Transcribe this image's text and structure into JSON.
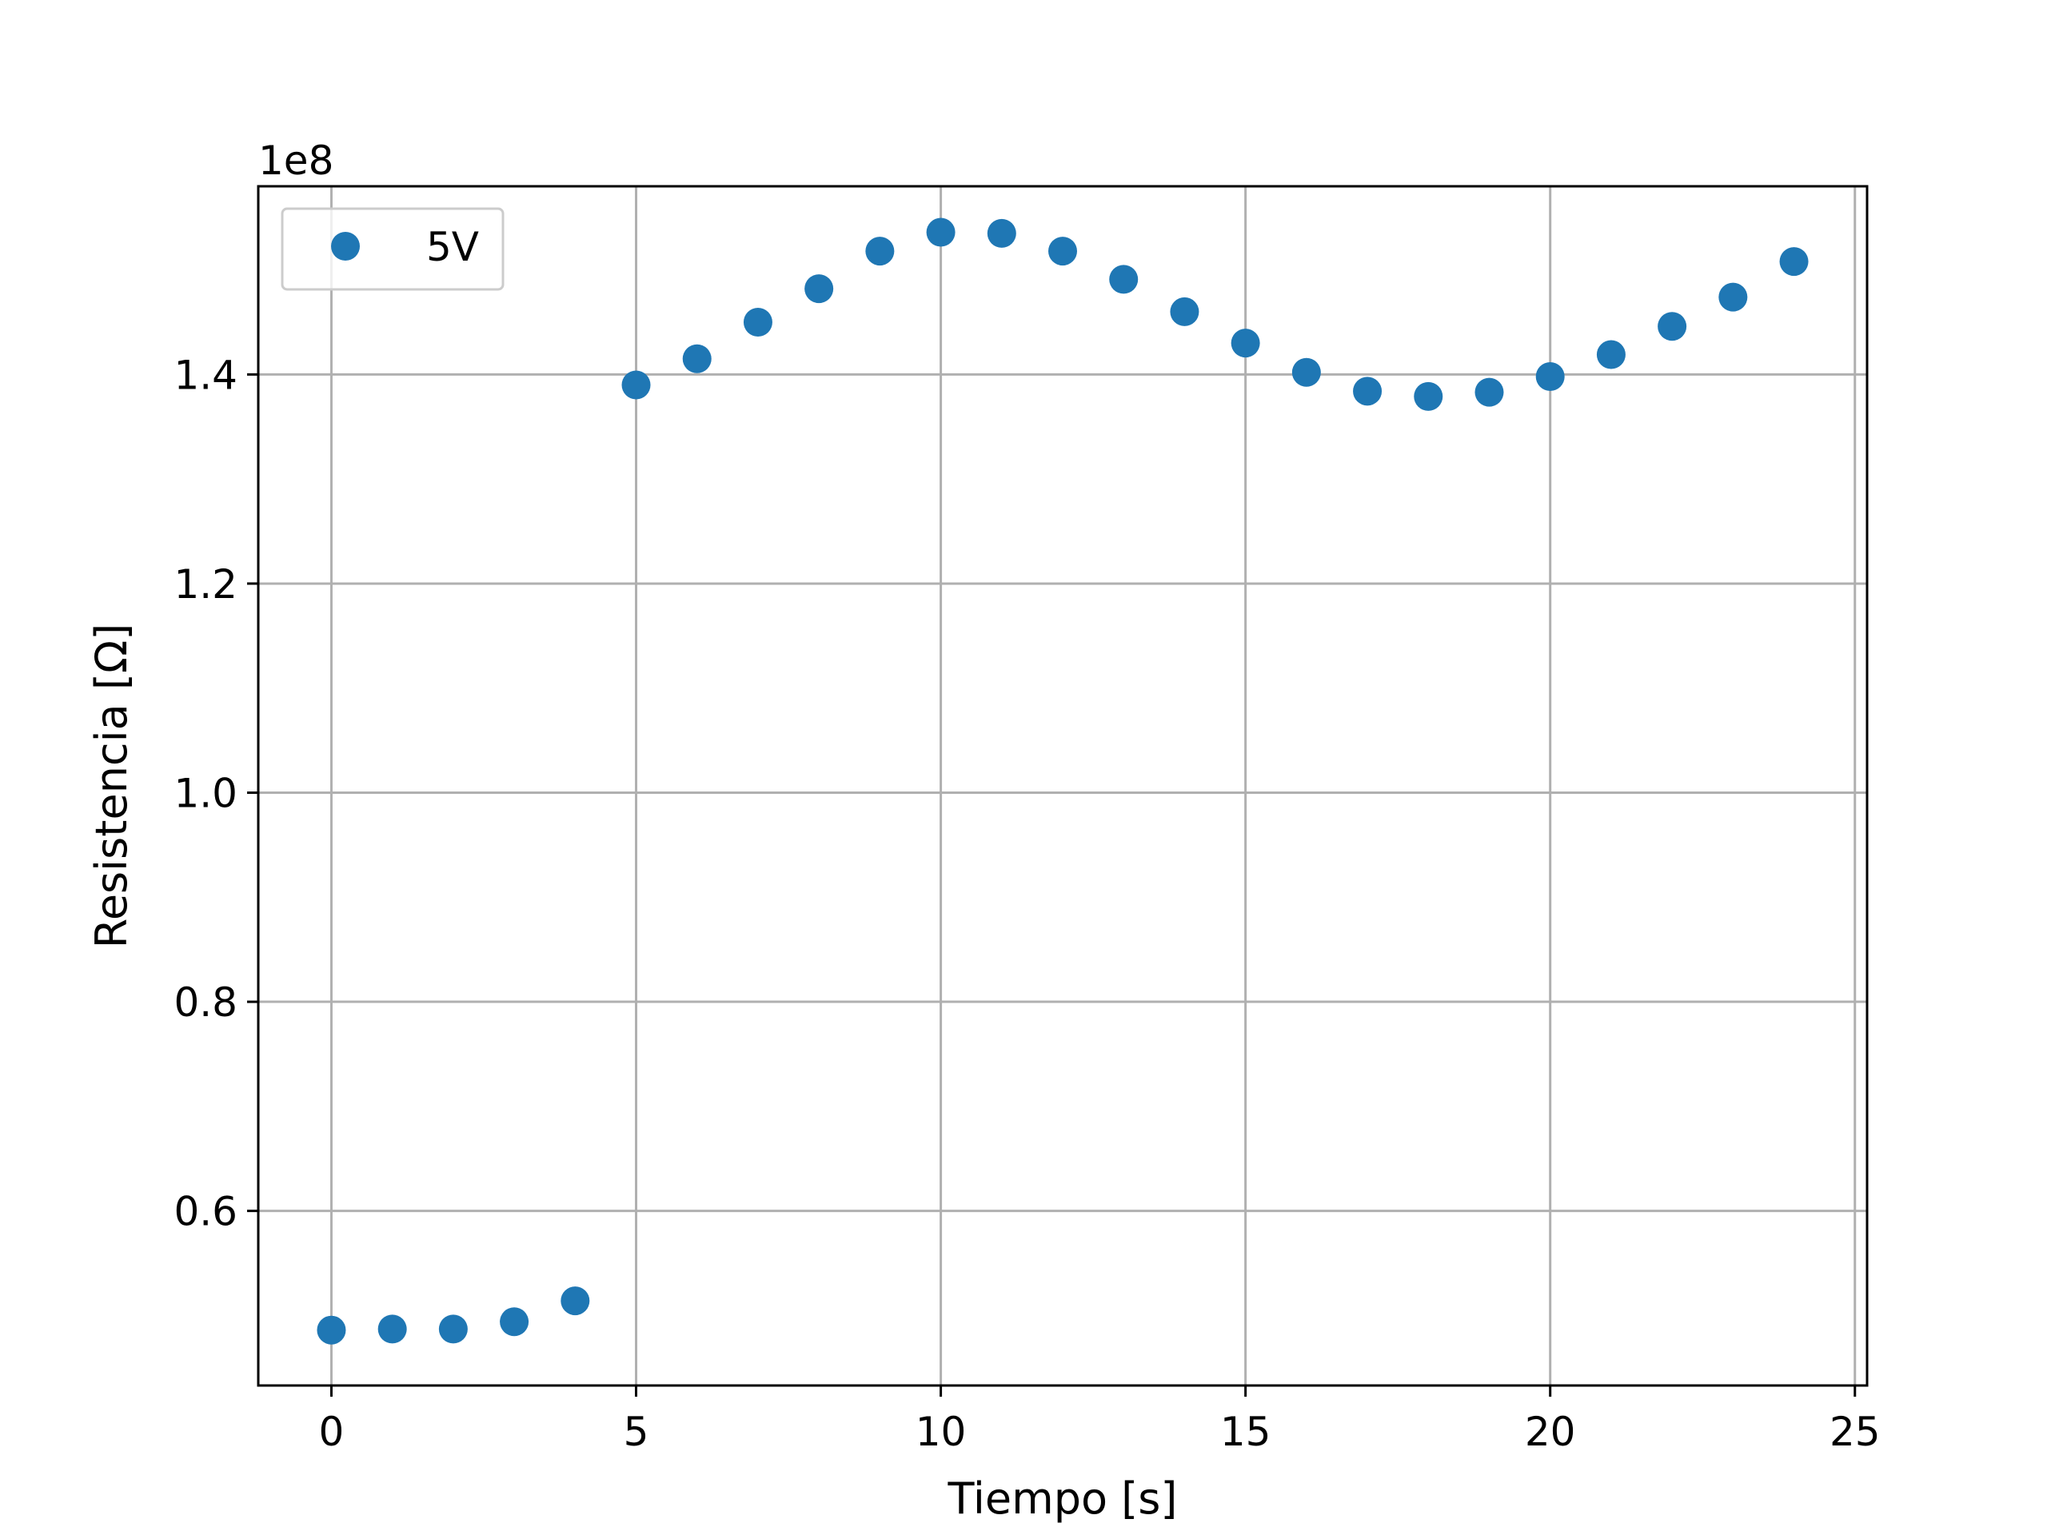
{
  "chart_data": {
    "type": "scatter",
    "title": "",
    "xlabel": "Tiempo [s]",
    "ylabel": "Resistencia [Ω]",
    "y_offset_label": "1e8",
    "xlim": [
      -1.2,
      25.2
    ],
    "ylim": [
      0.433,
      1.58
    ],
    "x_ticks": [
      0,
      5,
      10,
      15,
      20,
      25
    ],
    "x_tick_labels": [
      "0",
      "5",
      "10",
      "15",
      "20",
      "25"
    ],
    "y_ticks": [
      0.6,
      0.8,
      1.0,
      1.2,
      1.4
    ],
    "y_tick_labels": [
      "0.6",
      "0.8",
      "1.0",
      "1.2",
      "1.4"
    ],
    "grid": true,
    "legend_position": "top-left",
    "series": [
      {
        "name": "5V",
        "color": "#1f77b4",
        "marker": "circle",
        "x": [
          0,
          1,
          2,
          3,
          4,
          5,
          6,
          7,
          8,
          9,
          10,
          11,
          12,
          13,
          14,
          15,
          16,
          17,
          18,
          19,
          20,
          21,
          22,
          23,
          24
        ],
        "y": [
          0.486,
          0.487,
          0.487,
          0.494,
          0.514,
          1.39,
          1.415,
          1.45,
          1.482,
          1.518,
          1.536,
          1.535,
          1.518,
          1.491,
          1.46,
          1.43,
          1.402,
          1.384,
          1.379,
          1.383,
          1.398,
          1.419,
          1.446,
          1.474,
          1.508
        ]
      }
    ]
  }
}
